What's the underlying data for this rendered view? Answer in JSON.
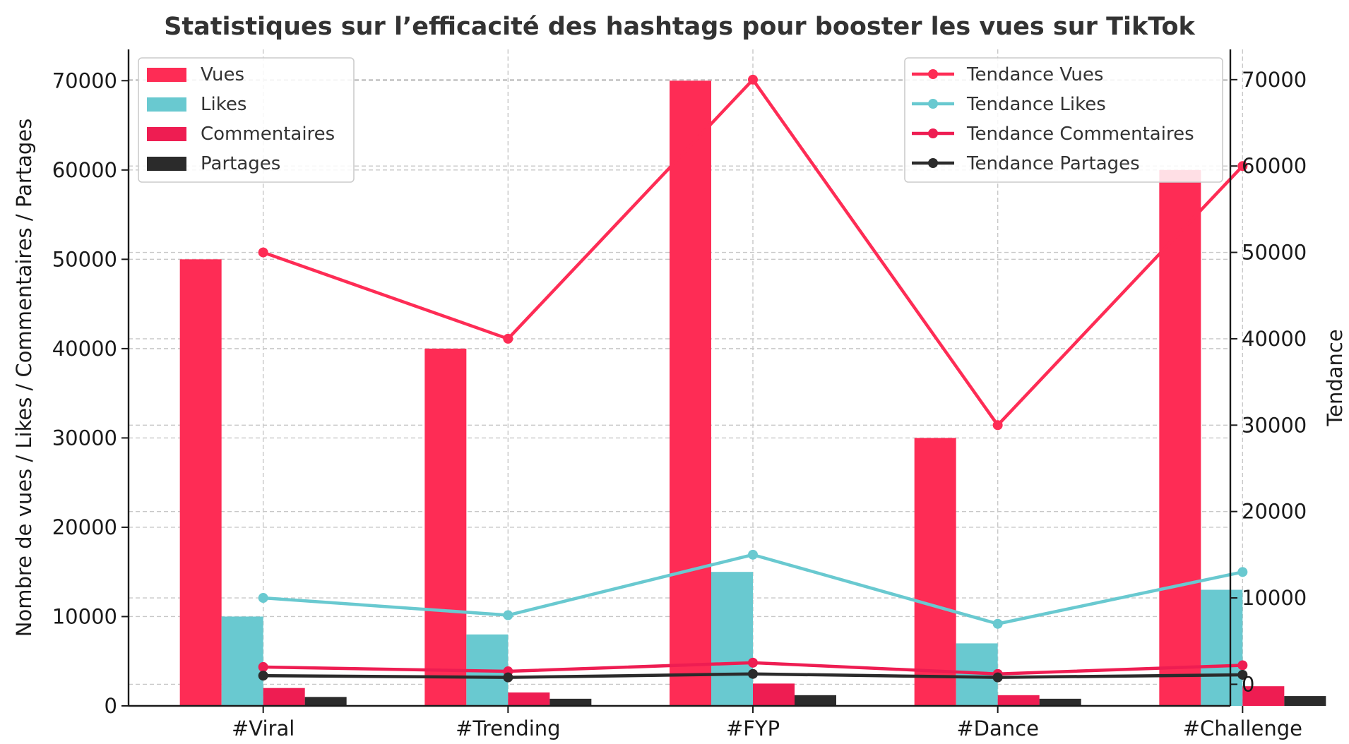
{
  "chart_data": {
    "type": "bar",
    "title": "Statistiques sur l’efficacité des hashtags pour booster les vues sur TikTok",
    "xlabel": "",
    "ylabel": "Nombre de vues / Likes / Commentaires / Partages",
    "y2label": "Tendance",
    "categories": [
      "#Viral",
      "#Trending",
      "#FYP",
      "#Dance",
      "#Challenge"
    ],
    "ylim": [
      0,
      73500
    ],
    "y2lim": [
      -2500,
      73500
    ],
    "yticks": [
      0,
      10000,
      20000,
      30000,
      40000,
      50000,
      60000,
      70000
    ],
    "y2ticks": [
      0,
      10000,
      20000,
      30000,
      40000,
      50000,
      60000,
      70000
    ],
    "series": [
      {
        "name": "Vues",
        "values": [
          50000,
          40000,
          70000,
          30000,
          60000
        ],
        "color": "#FE2C55"
      },
      {
        "name": "Likes",
        "values": [
          10000,
          8000,
          15000,
          7000,
          13000
        ],
        "color": "#69C9D0"
      },
      {
        "name": "Commentaires",
        "values": [
          2000,
          1500,
          2500,
          1200,
          2200
        ],
        "color": "#EE1D52"
      },
      {
        "name": "Partages",
        "values": [
          1000,
          800,
          1200,
          800,
          1100
        ],
        "color": "#2b2b2b"
      }
    ],
    "trend_series": [
      {
        "name": "Tendance Vues",
        "values": [
          50000,
          40000,
          70000,
          30000,
          60000
        ],
        "color": "#FE2C55"
      },
      {
        "name": "Tendance Likes",
        "values": [
          10000,
          8000,
          15000,
          7000,
          13000
        ],
        "color": "#69C9D0"
      },
      {
        "name": "Tendance Commentaires",
        "values": [
          2000,
          1500,
          2500,
          1200,
          2200
        ],
        "color": "#EE1D52"
      },
      {
        "name": "Tendance Partages",
        "values": [
          1000,
          800,
          1200,
          800,
          1100
        ],
        "color": "#2b2b2b"
      }
    ],
    "legend_bars_position": "top-left",
    "legend_lines_position": "top-right",
    "grid": true
  }
}
